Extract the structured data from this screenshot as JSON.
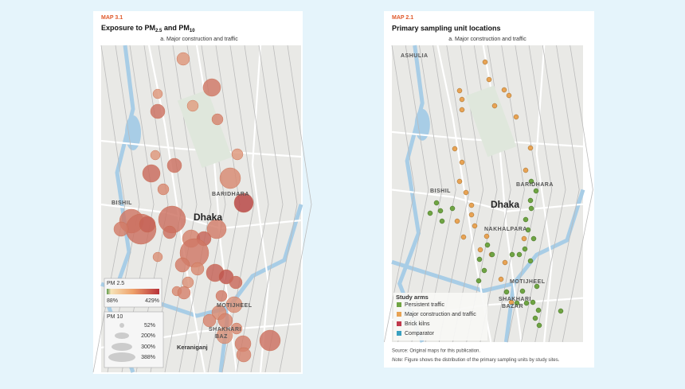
{
  "left": {
    "label": "MAP 3.1",
    "title": {
      "text": "Exposure to PM",
      "sub1": "2.5",
      "mid": " and PM",
      "sub2": "10"
    },
    "subtitle": "a. Major construction and traffic",
    "places": [
      "BISHIL",
      "Dhaka",
      "BARIDHARA",
      "MOTIJHEEL",
      "SHAKHARI",
      "BAZ",
      "Keraniganj"
    ],
    "legend_pm25": {
      "title": "PM 2.5",
      "min": "88%",
      "max": "429%"
    },
    "legend_pm10": {
      "title": "PM 10",
      "items": [
        "52%",
        "200%",
        "300%",
        "388%"
      ]
    }
  },
  "right": {
    "label": "MAP 2.1",
    "title": "Primary sampling unit locations",
    "subtitle": "a. Major construction and traffic",
    "places": [
      "ASHULIA",
      "BISHIL",
      "BARIDHARA",
      "Dhaka",
      "NAKHALPARA",
      "MOTIJHEEL",
      "SHAKHARI",
      "BAZAR"
    ],
    "legend": {
      "title": "Study arms",
      "items": [
        "Persistent traffic",
        "Major construction and traffic",
        "Brick kilns",
        "Comparator"
      ]
    },
    "source": "Source: Original maps for this publication.",
    "note_label": "Note:",
    "note": " Figure shows the distribution of the primary sampling units by study sites."
  }
}
